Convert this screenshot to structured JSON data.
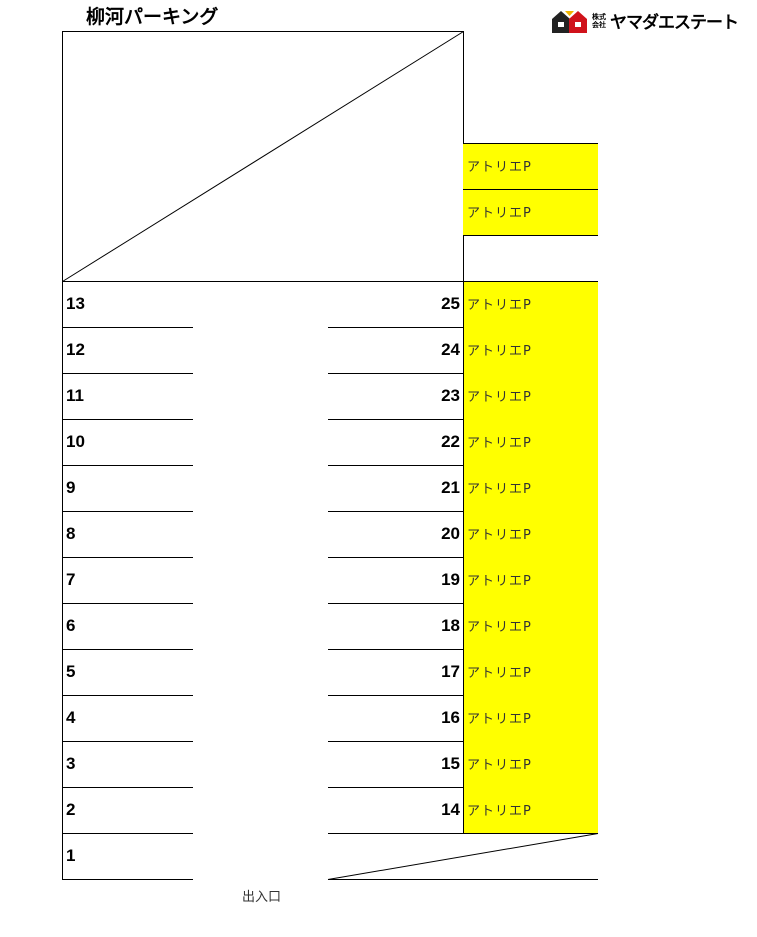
{
  "title": "柳河パーキング",
  "logo": {
    "prefix": "株式\n会社",
    "name": "ヤマダエステート",
    "colors": [
      "#222222",
      "#d0121b",
      "#f0b400"
    ]
  },
  "yellow_color": "#ffff00",
  "left_spaces": [
    "13",
    "12",
    "11",
    "10",
    "9",
    "8",
    "7",
    "6",
    "5",
    "4",
    "3",
    "2",
    "1"
  ],
  "right_spaces": [
    "25",
    "24",
    "23",
    "22",
    "21",
    "20",
    "19",
    "18",
    "17",
    "16",
    "15",
    "14"
  ],
  "reserved_label": "アトリエP",
  "top_reserved_count": 2,
  "entrance": "出入口"
}
